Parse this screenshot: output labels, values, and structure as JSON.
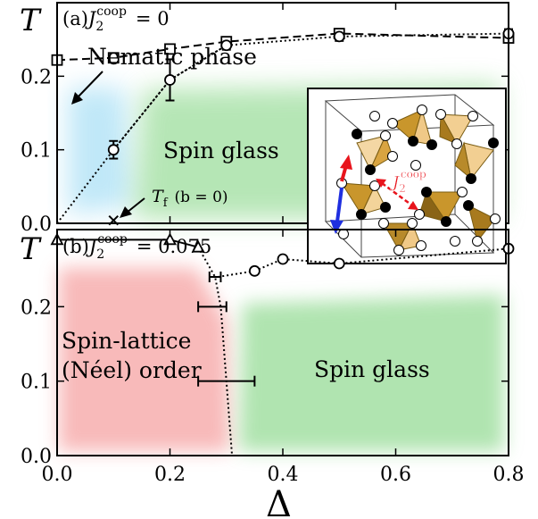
{
  "chart_data": [
    {
      "type": "line",
      "panel_label": "(a)",
      "param_label": "J",
      "param_sub": "2",
      "param_sup": "coop",
      "param_value": "= 0",
      "ylabel": "T",
      "xlim": [
        0.0,
        0.8
      ],
      "ylim": [
        0.0,
        0.3
      ],
      "y_ticks": [
        "0.0",
        "0.1",
        "0.2"
      ],
      "series": [
        {
          "marker": "square",
          "line": "dashed",
          "x": [
            0.0,
            0.1,
            0.2,
            0.3,
            0.5,
            0.8
          ],
          "y": [
            0.222,
            0.225,
            0.237,
            0.247,
            0.258,
            0.252
          ]
        },
        {
          "marker": "circle",
          "line": "dotted",
          "x": [
            0.1,
            0.2,
            0.3,
            0.5,
            0.8
          ],
          "y": [
            0.1,
            0.195,
            0.242,
            0.254,
            0.258
          ],
          "yerr": [
            0.012,
            0.028,
            0.006,
            0.006,
            0.006
          ]
        },
        {
          "marker": "cross",
          "x": [
            0.1
          ],
          "y": [
            0.004
          ]
        }
      ],
      "boundary_line": {
        "x": [
          0.0,
          0.1,
          0.2,
          0.3
        ],
        "y": [
          0.0,
          0.1,
          0.195,
          0.242
        ]
      },
      "annotations": {
        "nematic": "Nematic phase",
        "spin_glass": "Spin glass",
        "tf_symbol": "T",
        "tf_sub": "f",
        "tf_cond": "(b = 0)"
      },
      "inset": {
        "coupling_symbol": "J",
        "coupling_sub": "2",
        "coupling_sup": "coop"
      }
    },
    {
      "type": "line",
      "panel_label": "(b)",
      "param_label": "J",
      "param_sub": "2",
      "param_sup": "coop",
      "param_value": "= 0.075",
      "ylabel": "T",
      "xlabel": "Δ",
      "xlim": [
        0.0,
        0.8
      ],
      "ylim": [
        0.0,
        0.3
      ],
      "x_ticks": [
        "0.0",
        "0.2",
        "0.4",
        "0.6",
        "0.8"
      ],
      "y_ticks": [
        "0.0",
        "0.1",
        "0.2"
      ],
      "series": [
        {
          "marker": "triangle",
          "line": "solid",
          "x": [
            0.0,
            0.2,
            0.25
          ],
          "y": [
            0.29,
            0.29,
            0.28
          ]
        },
        {
          "marker": "circle",
          "line": "dotted",
          "x": [
            0.35,
            0.4,
            0.5,
            0.8
          ],
          "y": [
            0.248,
            0.264,
            0.258,
            0.278
          ]
        }
      ],
      "hbars": [
        {
          "y": 0.24,
          "xmin": 0.27,
          "xmax": 0.29
        },
        {
          "y": 0.2,
          "xmin": 0.25,
          "xmax": 0.3
        },
        {
          "y": 0.1,
          "xmin": 0.25,
          "xmax": 0.35
        }
      ],
      "regions": {
        "neel_line1": "Spin-lattice",
        "neel_line2": "(Néel) order",
        "spin_glass": "Spin glass"
      }
    }
  ]
}
